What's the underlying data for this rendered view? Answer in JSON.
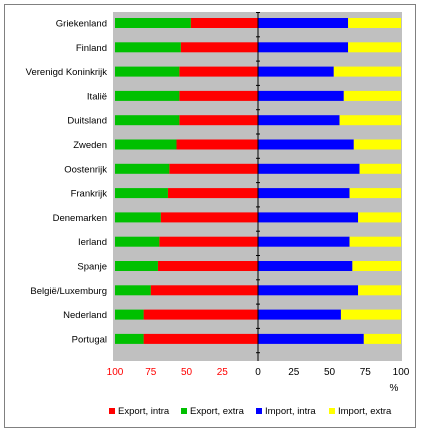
{
  "chart_data": {
    "type": "bar",
    "orientation": "horizontal",
    "stacked": true,
    "title": "",
    "xlabel": "",
    "ylabel": "",
    "unit": "%",
    "categories": [
      "Griekenland",
      "Finland",
      "Verenigd Koninkrijk",
      "Italië",
      "Duitsland",
      "Zweden",
      "Oostenrijk",
      "Frankrijk",
      "Denemarken",
      "Ierland",
      "Spanje",
      "België/Luxemburg",
      "Nederland",
      "Portugal"
    ],
    "export_scale_ticks": [
      "100",
      "75",
      "50",
      "25",
      "0"
    ],
    "import_scale_ticks": [
      "25",
      "50",
      "75",
      "100"
    ],
    "xlim_export": [
      100,
      0
    ],
    "xlim_import": [
      0,
      100
    ],
    "grid": false,
    "legend_position": "bottom",
    "series": [
      {
        "name": "Export, intra",
        "color": "#ff0000",
        "side": "export",
        "values": [
          47,
          54,
          55,
          55,
          55,
          57,
          62,
          63,
          68,
          69,
          70,
          75,
          80,
          80
        ]
      },
      {
        "name": "Export, extra",
        "color": "#00c000",
        "side": "export",
        "values": [
          53,
          46,
          45,
          45,
          45,
          43,
          38,
          37,
          32,
          31,
          30,
          25,
          20,
          20
        ]
      },
      {
        "name": "Import, intra",
        "color": "#0000ff",
        "side": "import",
        "values": [
          63,
          63,
          53,
          60,
          57,
          67,
          71,
          64,
          70,
          64,
          66,
          70,
          58,
          74
        ]
      },
      {
        "name": "Import, extra",
        "color": "#ffff00",
        "side": "import",
        "values": [
          37,
          37,
          47,
          40,
          43,
          33,
          29,
          36,
          30,
          36,
          34,
          30,
          42,
          26
        ]
      }
    ]
  }
}
